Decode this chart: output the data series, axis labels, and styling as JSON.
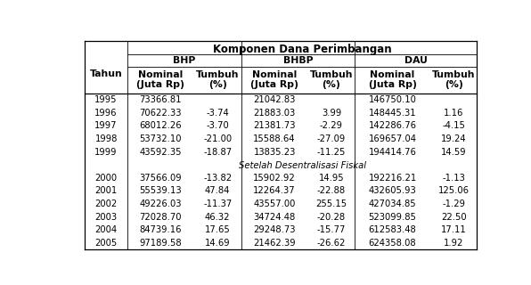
{
  "title": "Komponen Dana Perimbangan",
  "col_groups": [
    "BHP",
    "BHBP",
    "DAU"
  ],
  "sub_headers": [
    "Nominal\n(Juta Rp)",
    "Tumbuh\n(%)",
    "Nominal\n(Juta Rp)",
    "Tumbuh\n(%)",
    "Nominal\n(Juta Rp)",
    "Tumbuh\n(%)"
  ],
  "row_header": "Tahun",
  "separator_label": "Setelah Desentralisasi Fiskal",
  "rows": [
    [
      "1995",
      "73366.81",
      "",
      "21042.83",
      "",
      "146750.10",
      ""
    ],
    [
      "1996",
      "70622.33",
      "-3.74",
      "21883.03",
      "3.99",
      "148445.31",
      "1.16"
    ],
    [
      "1997",
      "68012.26",
      "-3.70",
      "21381.73",
      "-2.29",
      "142286.76",
      "-4.15"
    ],
    [
      "1998",
      "53732.10",
      "-21.00",
      "15588.64",
      "-27.09",
      "169657.04",
      "19.24"
    ],
    [
      "1999",
      "43592.35",
      "-18.87",
      "13835.23",
      "-11.25",
      "194414.76",
      "14.59"
    ],
    [
      "2000",
      "37566.09",
      "-13.82",
      "15902.92",
      "14.95",
      "192216.21",
      "-1.13"
    ],
    [
      "2001",
      "55539.13",
      "47.84",
      "12264.37",
      "-22.88",
      "432605.93",
      "125.06"
    ],
    [
      "2002",
      "49226.03",
      "-11.37",
      "43557.00",
      "255.15",
      "427034.85",
      "-1.29"
    ],
    [
      "2003",
      "72028.70",
      "46.32",
      "34724.48",
      "-20.28",
      "523099.85",
      "22.50"
    ],
    [
      "2004",
      "84739.16",
      "17.65",
      "29248.73",
      "-15.77",
      "612583.48",
      "17.11"
    ],
    [
      "2005",
      "97189.58",
      "14.69",
      "21462.39",
      "-26.62",
      "624358.08",
      "1.92"
    ]
  ],
  "separator_after_row_idx": 5,
  "bg_color": "#ffffff",
  "font_size": 7.2,
  "header_font_size": 7.8,
  "title_font_size": 8.5
}
